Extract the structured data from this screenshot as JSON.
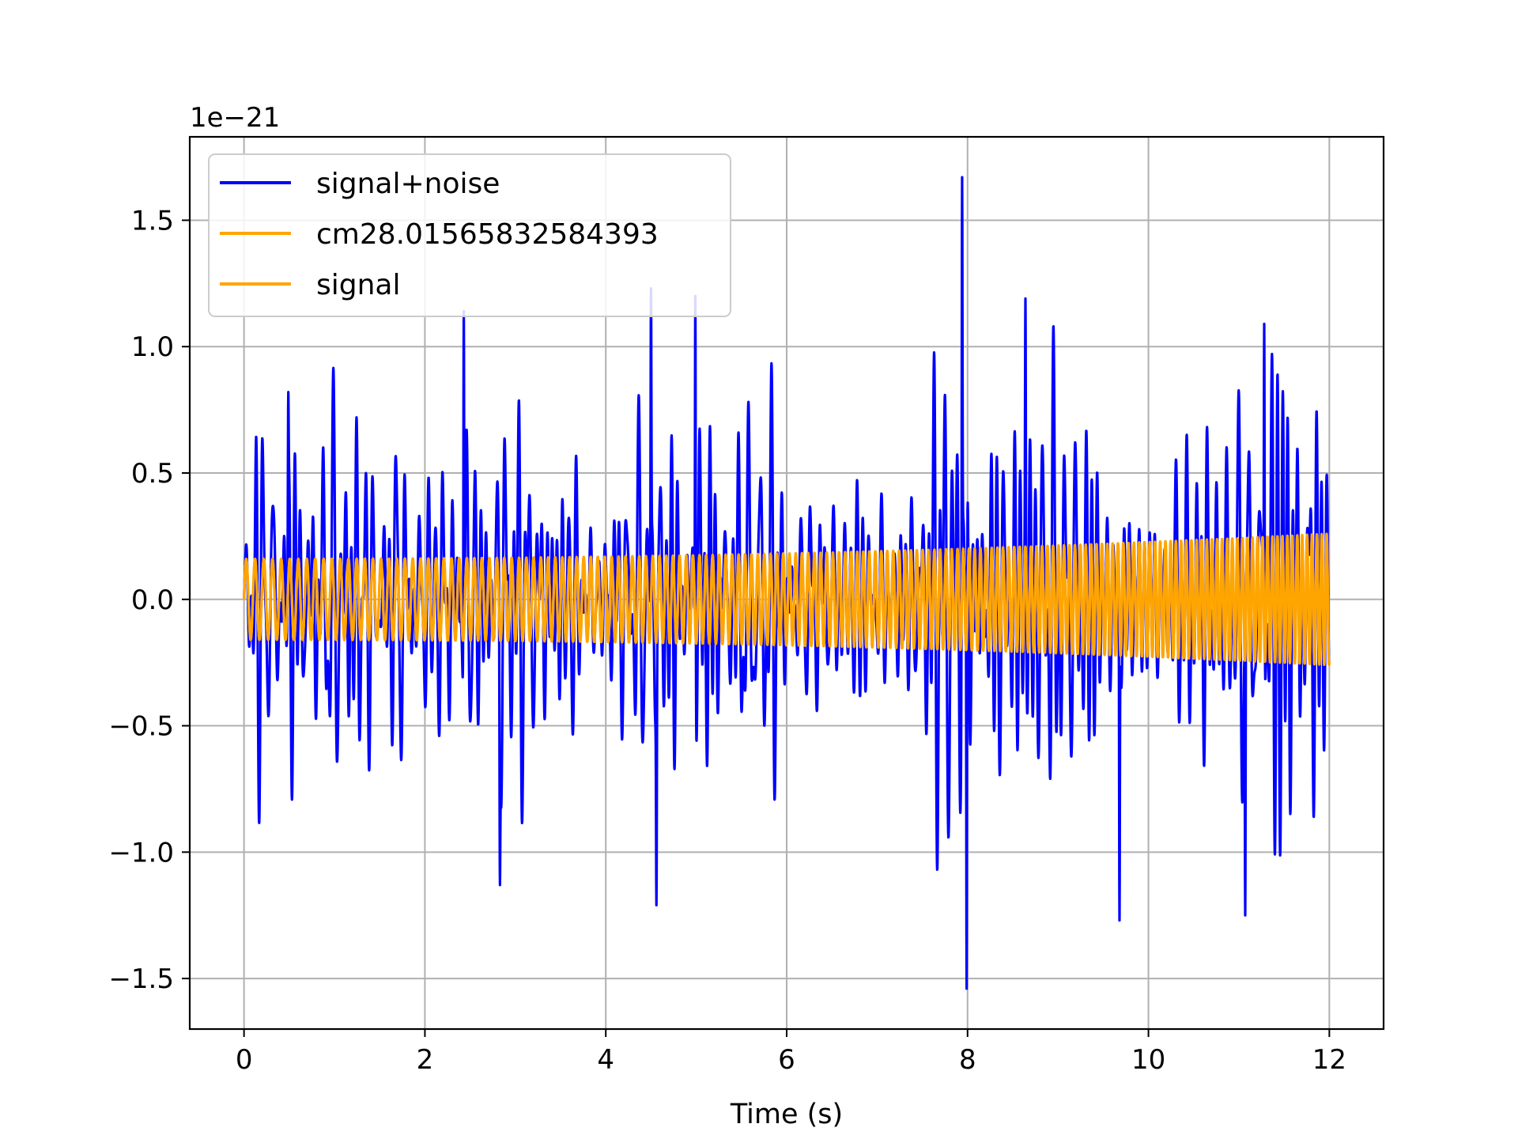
{
  "chart_data": {
    "type": "line",
    "title": "",
    "xlabel": "Time (s)",
    "ylabel": "",
    "offset_text": "1e−21",
    "xlim": [
      -0.6,
      12.6
    ],
    "ylim": [
      -1.7,
      1.83
    ],
    "xticks": [
      0,
      2,
      4,
      6,
      8,
      10,
      12
    ],
    "xtick_labels": [
      "0",
      "2",
      "4",
      "6",
      "8",
      "10",
      "12"
    ],
    "yticks": [
      -1.5,
      -1.0,
      -0.5,
      0.0,
      0.5,
      1.0,
      1.5
    ],
    "ytick_labels": [
      "−1.5",
      "−1.0",
      "−0.5",
      "0.0",
      "0.5",
      "1.0",
      "1.5"
    ],
    "grid": true,
    "legend_position": "top-left",
    "series": [
      {
        "name": "signal+noise",
        "color": "#0000ff",
        "description_values": {
          "x_range": [
            0,
            12
          ],
          "y_range": [
            -1.54,
            1.67
          ],
          "peaks": [
            {
              "x": 0.49,
              "y": 0.82
            },
            {
              "x": 2.43,
              "y": 1.14
            },
            {
              "x": 4.5,
              "y": 1.23
            },
            {
              "x": 4.99,
              "y": 1.2
            },
            {
              "x": 7.94,
              "y": 1.67
            },
            {
              "x": 8.64,
              "y": 1.19
            },
            {
              "x": 11.28,
              "y": 1.09
            },
            {
              "x": 7.99,
              "y": -1.54
            },
            {
              "x": 2.83,
              "y": -1.13
            },
            {
              "x": 4.56,
              "y": -1.21
            },
            {
              "x": 9.68,
              "y": -1.27
            },
            {
              "x": 11.07,
              "y": -1.25
            }
          ]
        }
      },
      {
        "name": "cm28.01565832584393",
        "color": "#ffa500",
        "description_values": {
          "x_range": [
            0,
            12
          ],
          "amplitude_start": 0.16,
          "amplitude_end": 0.26
        }
      },
      {
        "name": "signal",
        "color": "#ffa500",
        "description_values": {
          "x_range": [
            0,
            12
          ],
          "amplitude_start": 0.16,
          "amplitude_end": 0.26
        }
      }
    ]
  }
}
